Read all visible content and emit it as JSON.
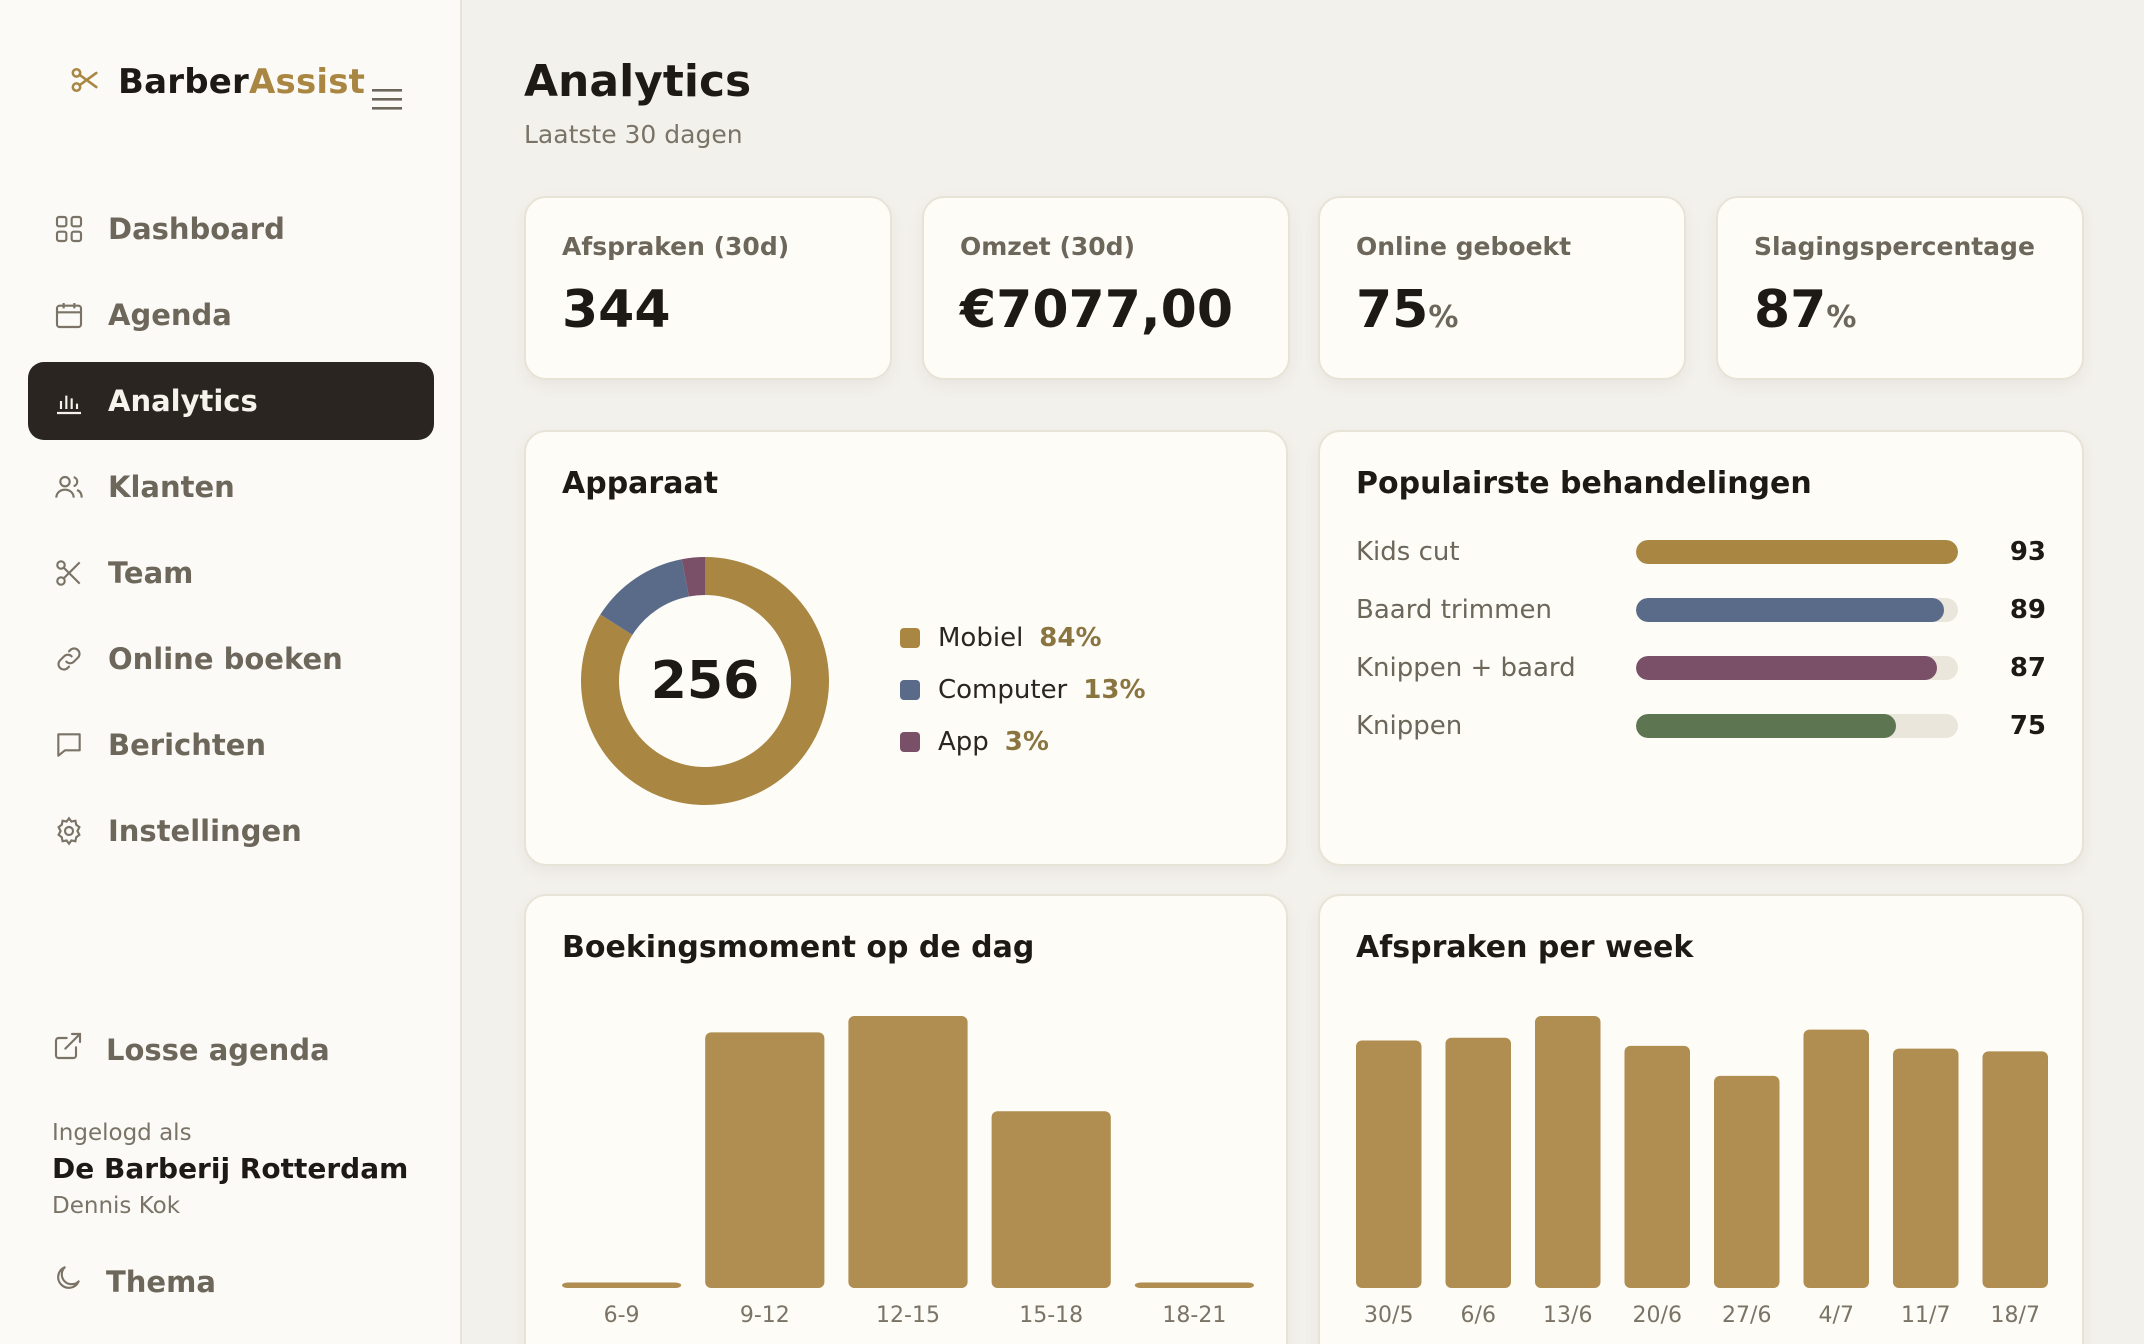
{
  "sidebar": {
    "brand_part1": "Barber",
    "brand_part2": "Assist",
    "items": [
      {
        "label": "Dashboard",
        "active": false
      },
      {
        "label": "Agenda",
        "active": false
      },
      {
        "label": "Analytics",
        "active": true
      },
      {
        "label": "Klanten",
        "active": false
      },
      {
        "label": "Team",
        "active": false
      },
      {
        "label": "Online boeken",
        "active": false
      },
      {
        "label": "Berichten",
        "active": false
      },
      {
        "label": "Instellingen",
        "active": false
      }
    ],
    "extra_link": "Losse agenda",
    "logged_in_label": "Ingelogd als",
    "organization": "De Barberij Rotterdam",
    "user": "Dennis Kok",
    "theme_label": "Thema"
  },
  "header": {
    "title": "Analytics",
    "subtitle": "Laatste 30 dagen"
  },
  "stats": [
    {
      "label": "Afspraken (30d)",
      "value": "344",
      "unit": ""
    },
    {
      "label": "Omzet (30d)",
      "value": "€7077,00",
      "unit": ""
    },
    {
      "label": "Online geboekt",
      "value": "75",
      "unit": "%"
    },
    {
      "label": "Slagingspercentage",
      "value": "87",
      "unit": "%"
    }
  ],
  "device": {
    "title": "Apparaat",
    "total": "256"
  },
  "popular": {
    "title": "Populairste behandelingen",
    "items": [
      {
        "name": "Kids cut",
        "value": "93",
        "color": "#a98641"
      },
      {
        "name": "Baard trimmen",
        "value": "89",
        "color": "#5a6b8a"
      },
      {
        "name": "Knippen + baard",
        "value": "87",
        "color": "#7a5068"
      },
      {
        "name": "Knippen",
        "value": "75",
        "color": "#5e7552"
      }
    ]
  },
  "booking_time": {
    "title": "Boekingsmoment op de dag"
  },
  "weekly": {
    "title": "Afspraken per week"
  },
  "chart_data": [
    {
      "type": "pie",
      "title": "Apparaat",
      "categories": [
        "Mobiel",
        "Computer",
        "App"
      ],
      "values": [
        84,
        13,
        3
      ],
      "labels": [
        "84%",
        "13%",
        "3%"
      ],
      "colors": [
        "#a98641",
        "#5a6b8a",
        "#7a5068"
      ],
      "legend": "right"
    },
    {
      "type": "bar",
      "title": "Boekingsmoment op de dag",
      "categories": [
        "6-9",
        "9-12",
        "12-15",
        "15-18",
        "18-21"
      ],
      "values": [
        2,
        94,
        100,
        65,
        2
      ],
      "ylim": [
        0,
        100
      ],
      "color": "#b08d50",
      "grid": false
    },
    {
      "type": "bar",
      "title": "Afspraken per week",
      "categories": [
        "30/5",
        "6/6",
        "13/6",
        "20/6",
        "27/6",
        "4/7",
        "11/7",
        "18/7"
      ],
      "values": [
        91,
        92,
        100,
        89,
        78,
        95,
        88,
        87
      ],
      "ylim": [
        0,
        100
      ],
      "color": "#b08d50",
      "grid": false
    }
  ]
}
